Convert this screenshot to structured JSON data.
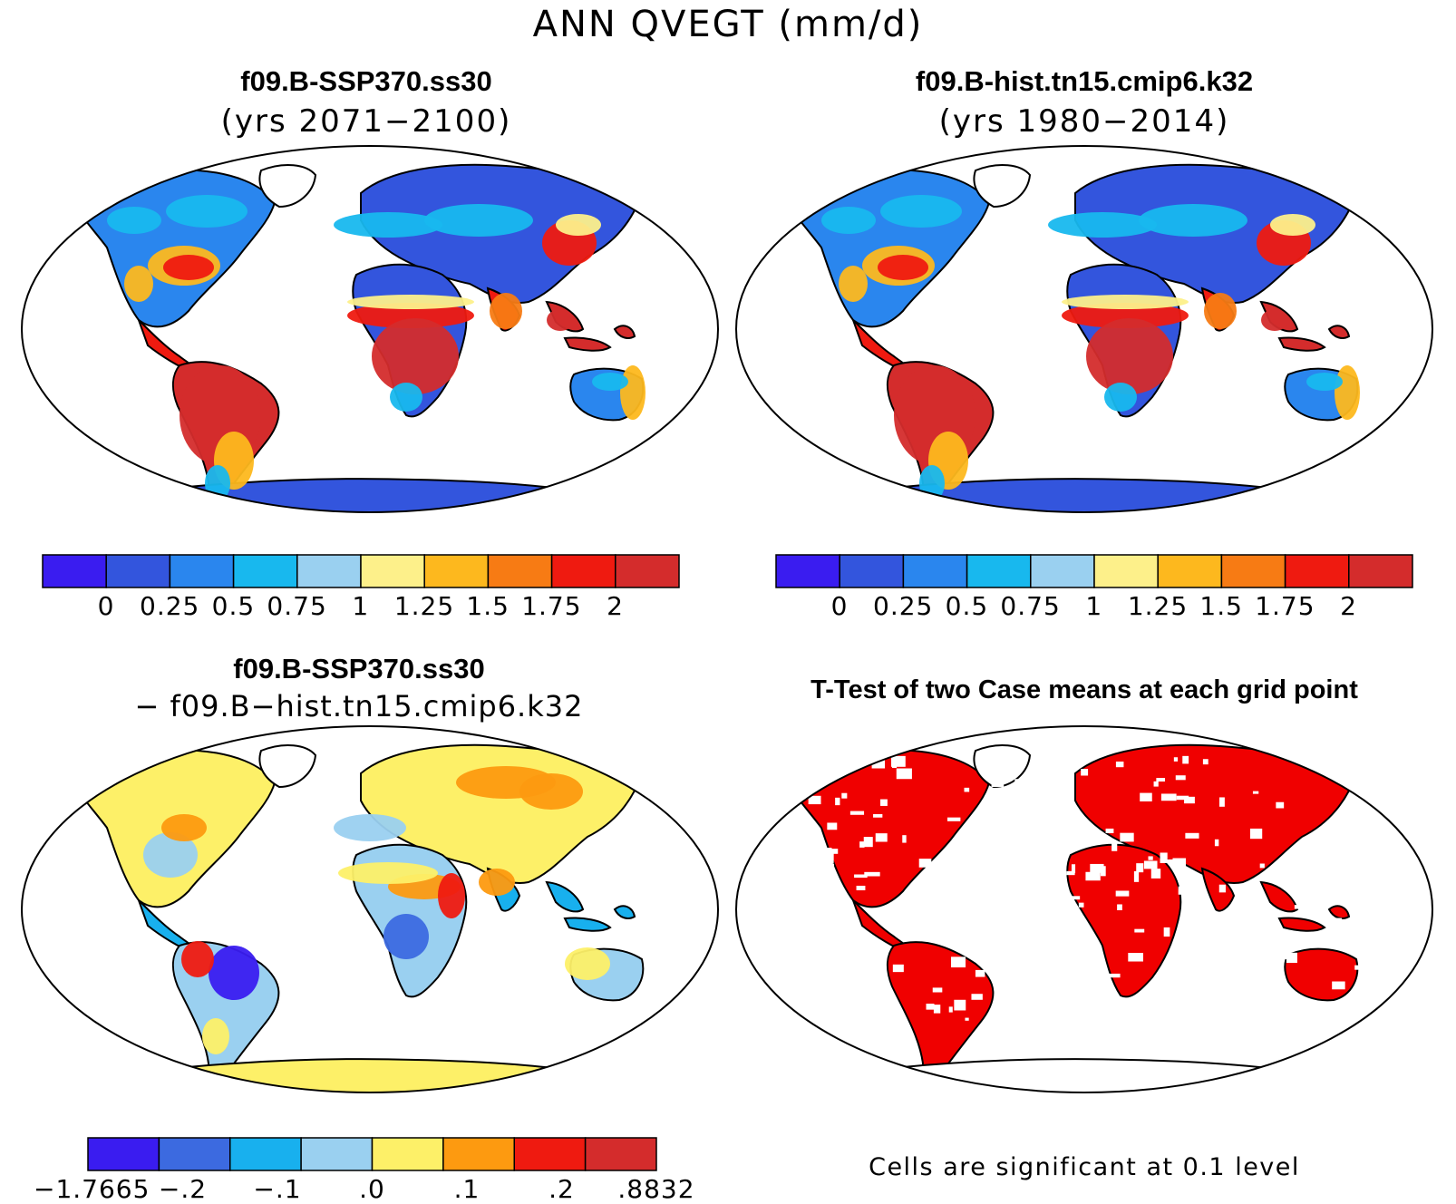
{
  "figure": {
    "main_title": "ANN QVEGT (mm/d)"
  },
  "panels": {
    "ssp": {
      "title": "f09.B-SSP370.ss30",
      "subtitle": "(yrs 2071−2100)"
    },
    "hist": {
      "title": "f09.B-hist.tn15.cmip6.k32",
      "subtitle": "(yrs 1980−2014)"
    },
    "diff": {
      "title": "f09.B-SSP370.ss30",
      "subtitle": "− f09.B−hist.tn15.cmip6.k32"
    },
    "ttest": {
      "title": "T-Test of two Case means at each grid point",
      "note": "Cells are significant at 0.1 level"
    }
  },
  "colorbars": {
    "abs": {
      "colors": [
        "#3a1cf0",
        "#3355dd",
        "#2a86ee",
        "#18b8ee",
        "#9ad0f0",
        "#fdf08a",
        "#fdb81e",
        "#f77b14",
        "#ef1a10",
        "#d42c2c"
      ],
      "labels": [
        "0",
        "0.25",
        "0.5",
        "0.75",
        "1",
        "1.25",
        "1.5",
        "1.75",
        "2"
      ]
    },
    "diff": {
      "colors": [
        "#3a1cf0",
        "#3c6ae0",
        "#18b0ee",
        "#9ad0f0",
        "#fdf068",
        "#fd9a10",
        "#ef1a10",
        "#d42c2c"
      ],
      "labels": [
        "−1.7665",
        "−.2",
        "−.1",
        ".0",
        ".1",
        ".2",
        ".8832"
      ]
    }
  },
  "significance_color": "#f00000"
}
